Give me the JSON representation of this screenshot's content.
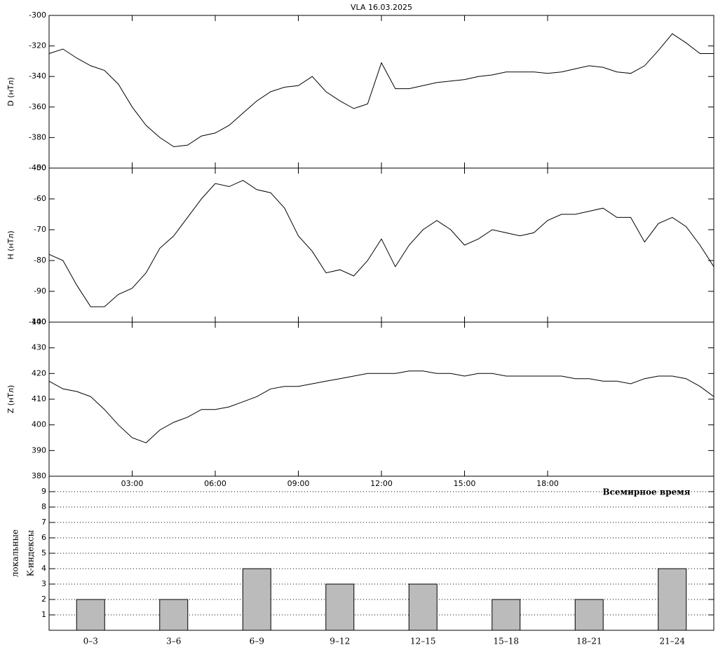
{
  "chart_data": [
    {
      "type": "line",
      "title": "VLA   16.03.2025",
      "ylabel": "D (нТл)",
      "color": "#000000",
      "x": [
        0,
        0.5,
        1,
        1.5,
        2,
        2.5,
        3,
        3.5,
        4,
        4.5,
        5,
        5.5,
        6,
        6.5,
        7,
        7.5,
        8,
        8.5,
        9,
        9.5,
        10,
        10.5,
        11,
        11.5,
        12,
        12.5,
        13,
        13.5,
        14,
        14.5,
        15,
        15.5,
        16,
        16.5,
        17,
        17.5,
        18,
        18.5,
        19,
        19.5,
        20,
        20.5,
        21,
        21.5,
        22,
        22.5,
        23,
        23.5,
        24
      ],
      "values": [
        -325,
        -322,
        -328,
        -333,
        -336,
        -345,
        -360,
        -372,
        -380,
        -386,
        -385,
        -379,
        -377,
        -372,
        -364,
        -356,
        -350,
        -347,
        -346,
        -340,
        -350,
        -356,
        -361,
        -358,
        -331,
        -348,
        -348,
        -346,
        -344,
        -343,
        -342,
        -340,
        -339,
        -337,
        -337,
        -337,
        -338,
        -337,
        -335,
        -333,
        -334,
        -337,
        -338,
        -333,
        -323,
        -312,
        -318,
        -325,
        -325
      ],
      "xlim": [
        0,
        24
      ],
      "ylim": [
        -400,
        -300
      ],
      "yticks": [
        -400,
        -380,
        -360,
        -340,
        -320,
        -300
      ]
    },
    {
      "type": "line",
      "ylabel": "H (нТл)",
      "color": "#000000",
      "x": [
        0,
        0.5,
        1,
        1.5,
        2,
        2.5,
        3,
        3.5,
        4,
        4.5,
        5,
        5.5,
        6,
        6.5,
        7,
        7.5,
        8,
        8.5,
        9,
        9.5,
        10,
        10.5,
        11,
        11.5,
        12,
        12.5,
        13,
        13.5,
        14,
        14.5,
        15,
        15.5,
        16,
        16.5,
        17,
        17.5,
        18,
        18.5,
        19,
        19.5,
        20,
        20.5,
        21,
        21.5,
        22,
        22.5,
        23,
        23.5,
        24
      ],
      "values": [
        -78,
        -80,
        -88,
        -95,
        -95,
        -91,
        -89,
        -84,
        -76,
        -72,
        -66,
        -60,
        -55,
        -56,
        -54,
        -57,
        -58,
        -63,
        -72,
        -77,
        -84,
        -83,
        -85,
        -80,
        -73,
        -82,
        -75,
        -70,
        -67,
        -70,
        -75,
        -73,
        -70,
        -71,
        -72,
        -71,
        -67,
        -65,
        -65,
        -64,
        -63,
        -66,
        -66,
        -74,
        -68,
        -66,
        -69,
        -75,
        -82
      ],
      "xlim": [
        0,
        24
      ],
      "ylim": [
        -100,
        -50
      ],
      "yticks": [
        -100,
        -90,
        -80,
        -70,
        -60,
        -50
      ]
    },
    {
      "type": "line",
      "ylabel": "Z (нТл)",
      "xlabel": "Всемирное время",
      "color": "#000000",
      "x": [
        0,
        0.5,
        1,
        1.5,
        2,
        2.5,
        3,
        3.5,
        4,
        4.5,
        5,
        5.5,
        6,
        6.5,
        7,
        7.5,
        8,
        8.5,
        9,
        9.5,
        10,
        10.5,
        11,
        11.5,
        12,
        12.5,
        13,
        13.5,
        14,
        14.5,
        15,
        15.5,
        16,
        16.5,
        17,
        17.5,
        18,
        18.5,
        19,
        19.5,
        20,
        20.5,
        21,
        21.5,
        22,
        22.5,
        23,
        23.5,
        24
      ],
      "values": [
        417,
        414,
        413,
        411,
        406,
        400,
        395,
        393,
        398,
        401,
        403,
        406,
        406,
        407,
        409,
        411,
        414,
        415,
        415,
        416,
        417,
        418,
        419,
        420,
        420,
        420,
        421,
        421,
        420,
        420,
        419,
        420,
        420,
        419,
        419,
        419,
        419,
        419,
        418,
        418,
        417,
        417,
        416,
        418,
        419,
        419,
        418,
        415,
        411
      ],
      "xlim": [
        0,
        24
      ],
      "ylim": [
        380,
        440
      ],
      "yticks": [
        380,
        390,
        400,
        410,
        420,
        430,
        440
      ],
      "xticks": [
        {
          "value": 3,
          "label": "03:00"
        },
        {
          "value": 6,
          "label": "06:00"
        },
        {
          "value": 9,
          "label": "09:00"
        },
        {
          "value": 12,
          "label": "12:00"
        },
        {
          "value": 15,
          "label": "15:00"
        },
        {
          "value": 18,
          "label": "18:00"
        }
      ]
    },
    {
      "type": "bar",
      "ylabel": [
        "локальные",
        "K-индексы"
      ],
      "color": "#bbbbbb",
      "categories": [
        "0–3",
        "3–6",
        "6–9",
        "9–12",
        "12–15",
        "15–18",
        "18–21",
        "21–24"
      ],
      "values": [
        2,
        2,
        4,
        3,
        3,
        2,
        2,
        4
      ],
      "ylim": [
        0,
        10
      ],
      "yticks": [
        1,
        2,
        3,
        4,
        5,
        6,
        7,
        8,
        9
      ],
      "grid": true
    }
  ]
}
